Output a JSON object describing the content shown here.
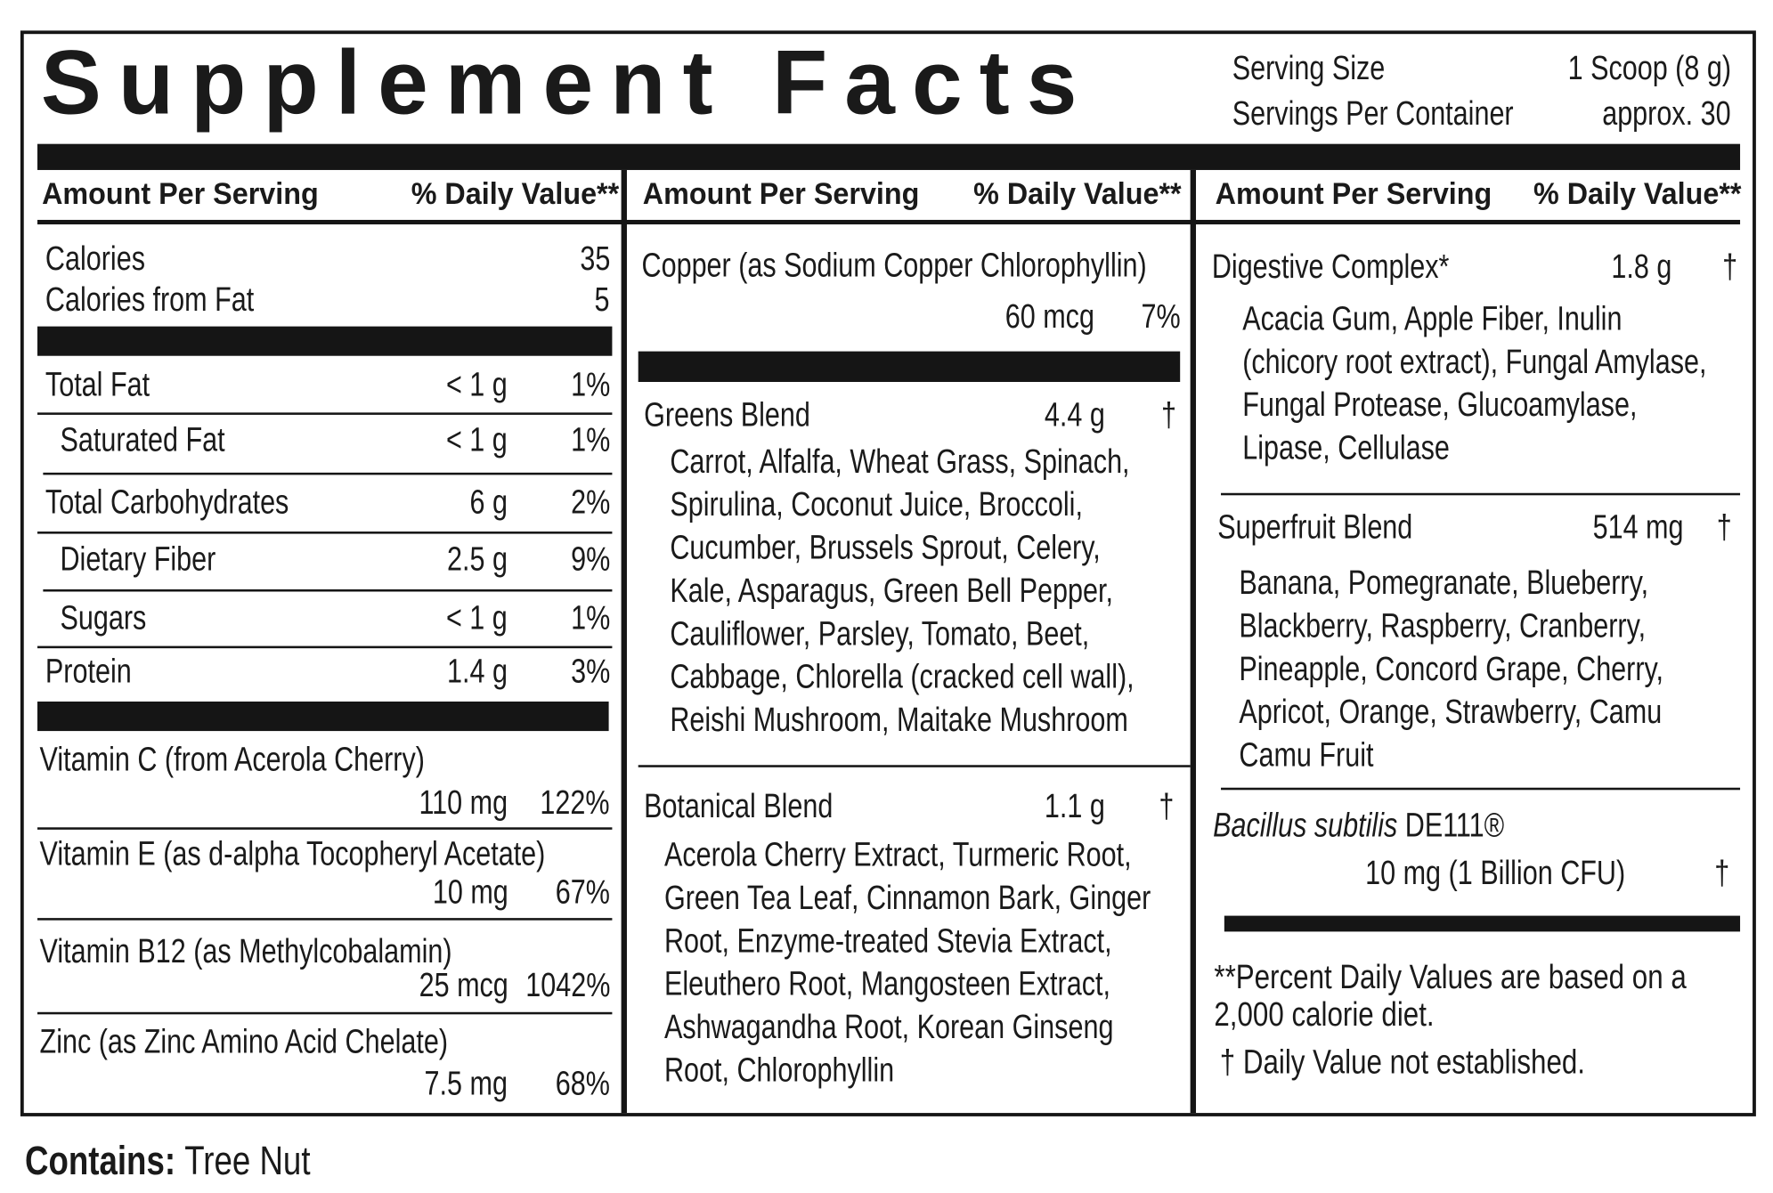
{
  "header": {
    "title": "Supplement Facts",
    "serving_size_label": "Serving Size",
    "serving_size": "1 Scoop (8 g)",
    "servings_per_container_label": "Servings Per Container",
    "servings_per_container": "approx. 30"
  },
  "column_headers": [
    {
      "amount": "Amount Per Serving",
      "daily_value": "% Daily Value**"
    },
    {
      "amount": "Amount Per Serving",
      "daily_value": "% Daily Value**"
    },
    {
      "amount": "Amount Per Serving",
      "daily_value": "% Daily Value**"
    }
  ],
  "calories": [
    {
      "name": "Calories",
      "value": "35"
    },
    {
      "name": "Calories from Fat",
      "value": "5"
    }
  ],
  "macros": [
    {
      "name": "Total Fat",
      "amount": "< 1 g",
      "daily_value": "1%"
    },
    {
      "name": "Saturated Fat",
      "amount": "< 1 g",
      "daily_value": "1%"
    },
    {
      "name": "Total Carbohydrates",
      "amount": "6 g",
      "daily_value": "2%"
    },
    {
      "name": "Dietary Fiber",
      "amount": "2.5 g",
      "daily_value": "9%"
    },
    {
      "name": "Sugars",
      "amount": "< 1 g",
      "daily_value": "1%"
    },
    {
      "name": "Protein",
      "amount": "1.4 g",
      "daily_value": "3%"
    }
  ],
  "vitamins": [
    {
      "name": "Vitamin C (from Acerola Cherry)",
      "amount": "110 mg",
      "daily_value": "122%"
    },
    {
      "name": "Vitamin E (as d-alpha Tocopheryl Acetate)",
      "amount": "10 mg",
      "daily_value": "67%"
    },
    {
      "name": "Vitamin B12 (as Methylcobalamin)",
      "amount": "25 mcg",
      "daily_value": "1042%"
    },
    {
      "name": "Zinc (as Zinc Amino Acid Chelate)",
      "amount": "7.5 mg",
      "daily_value": "68%"
    }
  ],
  "copper": {
    "name": "Copper (as Sodium Copper Chlorophyllin)",
    "amount": "60 mcg",
    "daily_value": "7%"
  },
  "blends": [
    {
      "name": "Greens Blend",
      "amount": "4.4 g",
      "daily_value": "†",
      "ingredients": [
        "Carrot, Alfalfa, Wheat Grass, Spinach,",
        "Spirulina, Coconut Juice, Broccoli,",
        "Cucumber, Brussels Sprout, Celery,",
        "Kale, Asparagus, Green Bell Pepper,",
        "Cauliflower, Parsley, Tomato, Beet,",
        "Cabbage, Chlorella (cracked cell wall),",
        "Reishi Mushroom, Maitake Mushroom"
      ]
    },
    {
      "name": "Botanical Blend",
      "amount": "1.1 g",
      "daily_value": "†",
      "ingredients": [
        "Acerola Cherry Extract, Turmeric Root,",
        "Green Tea Leaf, Cinnamon Bark, Ginger",
        "Root, Enzyme-treated Stevia Extract,",
        "Eleuthero Root, Mangosteen Extract,",
        "Ashwagandha Root, Korean Ginseng",
        "Root, Chlorophyllin"
      ]
    },
    {
      "name": "Digestive Complex*",
      "amount": "1.8 g",
      "daily_value": "†",
      "ingredients": [
        "Acacia Gum, Apple Fiber, Inulin",
        "(chicory root extract), Fungal Amylase,",
        "Fungal Protease, Glucoamylase,",
        "Lipase, Cellulase"
      ]
    },
    {
      "name": "Superfruit Blend",
      "amount": "514 mg",
      "daily_value": "†",
      "ingredients": [
        "Banana, Pomegranate, Blueberry,",
        "Blackberry, Raspberry, Cranberry,",
        "Pineapple, Concord Grape, Cherry,",
        "Apricot, Orange, Strawberry, Camu",
        "Camu Fruit"
      ]
    }
  ],
  "probiotic": {
    "name_italic": "Bacillus subtilis",
    "name_rest": " DE111®",
    "amount": "10 mg (1 Billion CFU)",
    "daily_value": "†"
  },
  "footnotes": [
    "**Percent Daily Values are based on a 2,000 calorie diet.",
    "† Daily Value not established."
  ],
  "contains": {
    "label": "Contains:",
    "value": "Tree Nut"
  }
}
